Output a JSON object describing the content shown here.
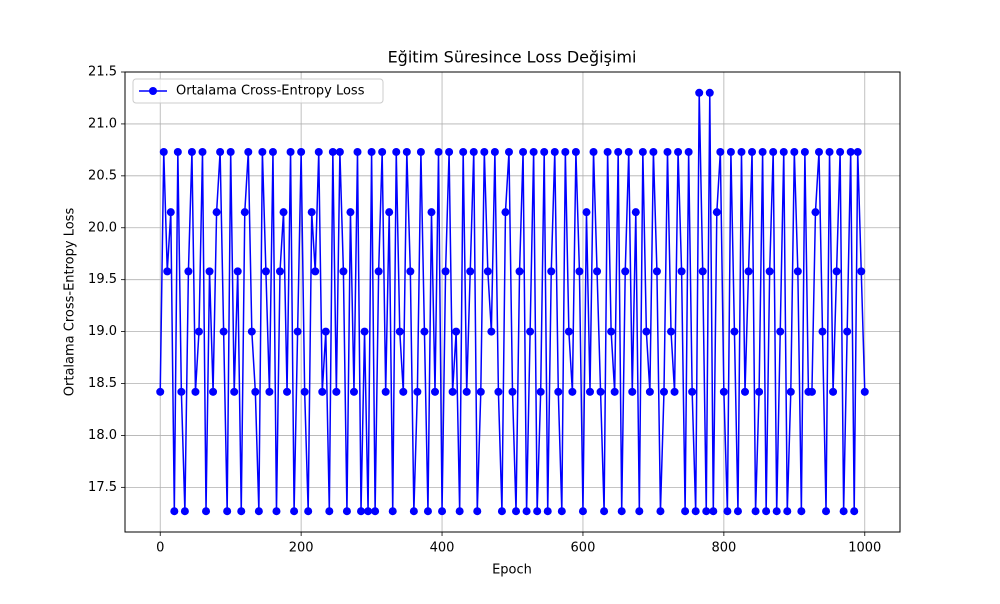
{
  "chart_data": {
    "type": "line",
    "title": "Eğitim Süresince Loss Değişimi",
    "x_label": "Epoch",
    "y_label": "Ortalama Cross-Entropy Loss",
    "legend": "upper left",
    "grid": true,
    "xlim": [
      -50,
      1050
    ],
    "ylim": [
      17.07,
      21.5
    ],
    "xticks": [
      0,
      200,
      400,
      600,
      800,
      1000
    ],
    "yticks": [
      17.5,
      {
        "value": 18,
        "label": "18.0"
      },
      18.5,
      {
        "value": 19,
        "label": "19.0"
      },
      19.5,
      {
        "value": 20,
        "label": "20.0"
      },
      20.5,
      {
        "value": 21,
        "label": "21.0"
      },
      21.5
    ],
    "x": [
      0,
      5,
      10,
      15,
      20,
      25,
      30,
      35,
      40,
      45,
      50,
      55,
      60,
      65,
      70,
      75,
      80,
      85,
      90,
      95,
      100,
      105,
      110,
      115,
      120,
      125,
      130,
      135,
      140,
      145,
      150,
      155,
      160,
      165,
      170,
      175,
      180,
      185,
      190,
      195,
      200,
      205,
      210,
      215,
      220,
      225,
      230,
      235,
      240,
      245,
      250,
      255,
      260,
      265,
      270,
      275,
      280,
      285,
      290,
      295,
      300,
      305,
      310,
      315,
      320,
      325,
      330,
      335,
      340,
      345,
      350,
      355,
      360,
      365,
      370,
      375,
      380,
      385,
      390,
      395,
      400,
      405,
      410,
      415,
      420,
      425,
      430,
      435,
      440,
      445,
      450,
      455,
      460,
      465,
      470,
      475,
      480,
      485,
      490,
      495,
      500,
      505,
      510,
      515,
      520,
      525,
      530,
      535,
      540,
      545,
      550,
      555,
      560,
      565,
      570,
      575,
      580,
      585,
      590,
      595,
      600,
      605,
      610,
      615,
      620,
      625,
      630,
      635,
      640,
      645,
      650,
      655,
      660,
      665,
      670,
      675,
      680,
      685,
      690,
      695,
      700,
      705,
      710,
      715,
      720,
      725,
      730,
      735,
      740,
      745,
      750,
      755,
      760,
      765,
      770,
      775,
      780,
      785,
      790,
      795,
      800,
      805,
      810,
      815,
      820,
      825,
      830,
      835,
      840,
      845,
      850,
      855,
      860,
      865,
      870,
      875,
      880,
      885,
      890,
      895,
      900,
      905,
      910,
      915,
      920,
      925,
      930,
      935,
      940,
      945,
      950,
      955,
      960,
      965,
      970,
      975,
      980,
      985,
      990,
      995,
      1000
    ],
    "series": [
      {
        "name": "Ortalama Cross-Entropy Loss",
        "color": "#0000ff",
        "values": [
          18.42,
          20.73,
          19.58,
          20.15,
          17.27,
          20.73,
          18.42,
          17.27,
          19.58,
          20.73,
          18.42,
          19.0,
          20.73,
          17.27,
          19.58,
          18.42,
          20.15,
          20.73,
          19.0,
          17.27,
          20.73,
          18.42,
          19.58,
          17.27,
          20.15,
          20.73,
          19.0,
          18.42,
          17.27,
          20.73,
          19.58,
          18.42,
          20.73,
          17.27,
          19.58,
          20.15,
          18.42,
          20.73,
          17.27,
          19.0,
          20.73,
          18.42,
          17.27,
          20.15,
          19.58,
          20.73,
          18.42,
          19.0,
          17.27,
          20.73,
          18.42,
          20.73,
          19.58,
          17.27,
          20.15,
          18.42,
          20.73,
          17.27,
          19.0,
          17.27,
          20.73,
          17.27,
          19.58,
          20.73,
          18.42,
          20.15,
          17.27,
          20.73,
          19.0,
          18.42,
          20.73,
          19.58,
          17.27,
          18.42,
          20.73,
          19.0,
          17.27,
          20.15,
          18.42,
          20.73,
          17.27,
          19.58,
          20.73,
          18.42,
          19.0,
          17.27,
          20.73,
          18.42,
          19.58,
          20.73,
          17.27,
          18.42,
          20.73,
          19.58,
          19.0,
          20.73,
          18.42,
          17.27,
          20.15,
          20.73,
          18.42,
          17.27,
          19.58,
          20.73,
          17.27,
          19.0,
          20.73,
          17.27,
          18.42,
          20.73,
          17.27,
          19.58,
          20.73,
          18.42,
          17.27,
          20.73,
          19.0,
          18.42,
          20.73,
          19.58,
          17.27,
          20.15,
          18.42,
          20.73,
          19.58,
          18.42,
          17.27,
          20.73,
          19.0,
          18.42,
          20.73,
          17.27,
          19.58,
          20.73,
          18.42,
          20.15,
          17.27,
          20.73,
          19.0,
          18.42,
          20.73,
          19.58,
          17.27,
          18.42,
          20.73,
          19.0,
          18.42,
          20.73,
          19.58,
          17.27,
          20.73,
          18.42,
          17.27,
          21.3,
          19.58,
          17.27,
          21.3,
          17.27,
          20.15,
          20.73,
          18.42,
          17.27,
          20.73,
          19.0,
          17.27,
          20.73,
          18.42,
          19.58,
          20.73,
          17.27,
          18.42,
          20.73,
          17.27,
          19.58,
          20.73,
          17.27,
          19.0,
          20.73,
          17.27,
          18.42,
          20.73,
          19.58,
          17.27,
          20.73,
          18.42,
          18.42,
          20.15,
          20.73,
          19.0,
          17.27,
          20.73,
          18.42,
          19.58,
          20.73,
          17.27,
          19.0,
          20.73,
          17.27,
          20.73,
          19.58,
          18.42
        ]
      }
    ]
  }
}
